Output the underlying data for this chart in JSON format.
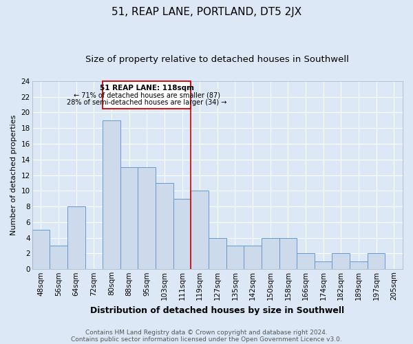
{
  "title": "51, REAP LANE, PORTLAND, DT5 2JX",
  "subtitle": "Size of property relative to detached houses in Southwell",
  "xlabel": "Distribution of detached houses by size in Southwell",
  "ylabel": "Number of detached properties",
  "bar_color": "#ccdaeb",
  "bar_edge_color": "#6699cc",
  "background_color": "#dce8f5",
  "grid_color": "#ffffff",
  "categories": [
    "48sqm",
    "56sqm",
    "64sqm",
    "72sqm",
    "80sqm",
    "88sqm",
    "95sqm",
    "103sqm",
    "111sqm",
    "119sqm",
    "127sqm",
    "135sqm",
    "142sqm",
    "150sqm",
    "158sqm",
    "166sqm",
    "174sqm",
    "182sqm",
    "189sqm",
    "197sqm",
    "205sqm"
  ],
  "values": [
    5,
    3,
    8,
    0,
    19,
    13,
    13,
    11,
    9,
    10,
    4,
    3,
    3,
    4,
    4,
    2,
    1,
    2,
    1,
    2,
    0
  ],
  "ylim": [
    0,
    24
  ],
  "yticks": [
    0,
    2,
    4,
    6,
    8,
    10,
    12,
    14,
    16,
    18,
    20,
    22,
    24
  ],
  "property_label": "51 REAP LANE: 118sqm",
  "annotation_line1": "← 71% of detached houses are smaller (87)",
  "annotation_line2": "28% of semi-detached houses are larger (34) →",
  "annotation_box_color": "#ffffff",
  "annotation_box_edge": "#cc0000",
  "red_line_color": "#cc0000",
  "red_line_x": 9,
  "footer1": "Contains HM Land Registry data © Crown copyright and database right 2024.",
  "footer2": "Contains public sector information licensed under the Open Government Licence v3.0.",
  "title_fontsize": 11,
  "subtitle_fontsize": 9.5,
  "xlabel_fontsize": 9,
  "ylabel_fontsize": 8,
  "tick_fontsize": 7.5,
  "footer_fontsize": 6.5
}
